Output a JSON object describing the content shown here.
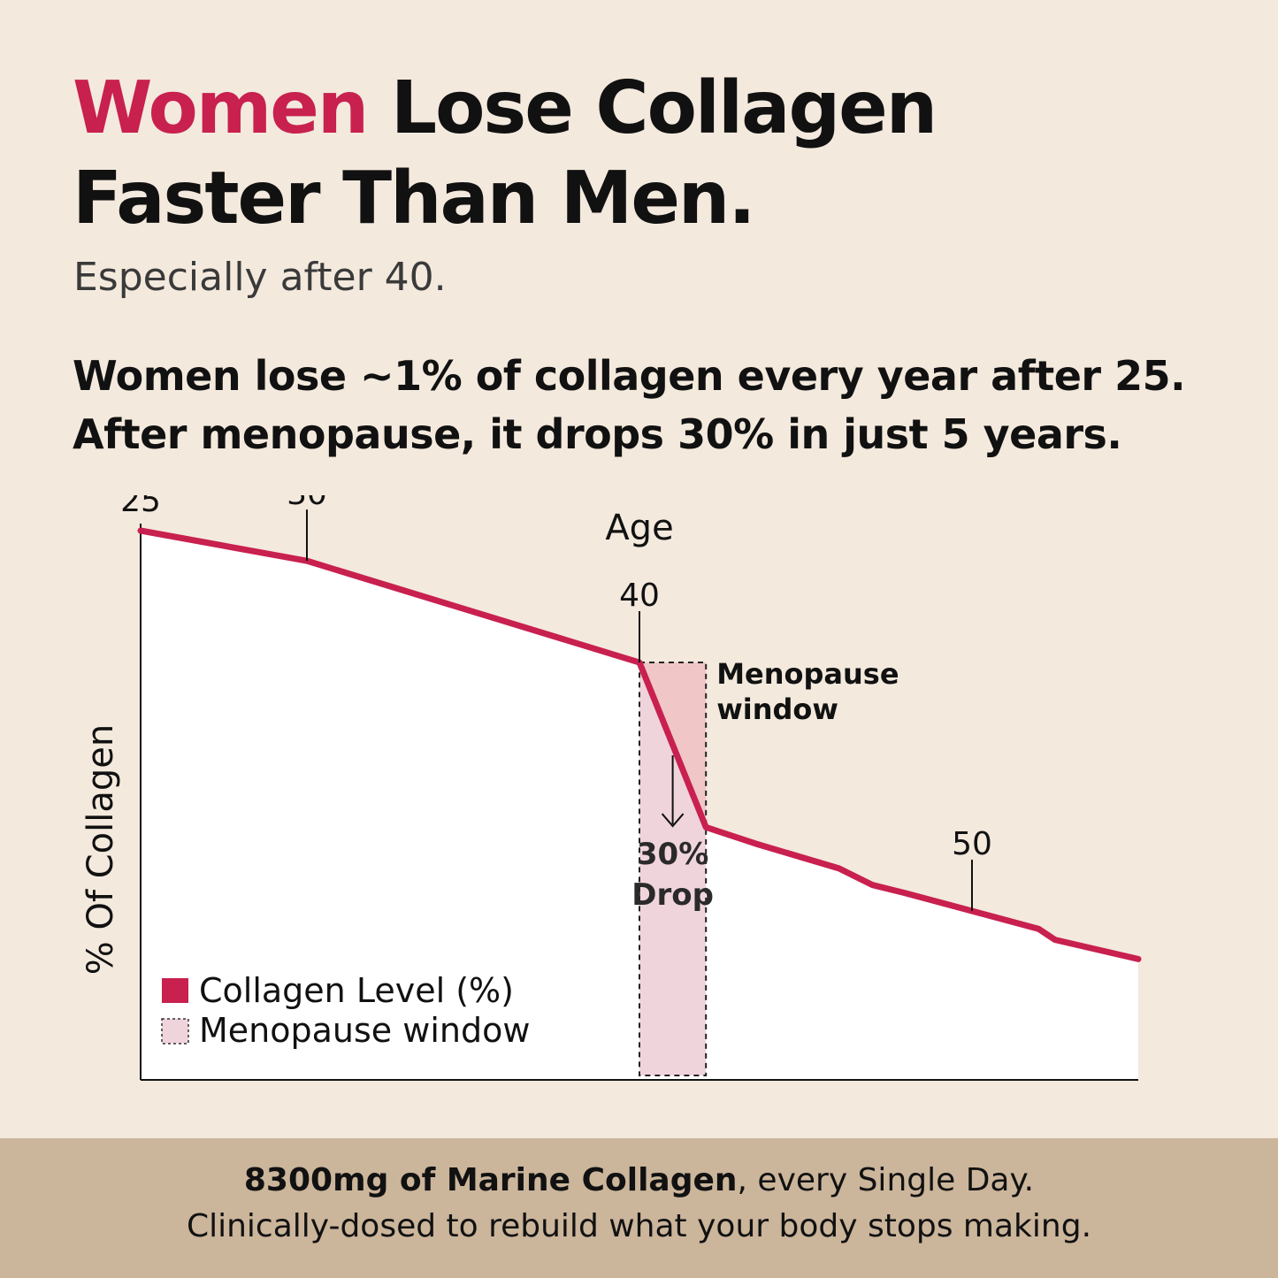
{
  "headline": {
    "accent_word": "Women",
    "line1_rest": " Lose Collagen",
    "line2": "Faster Than Men."
  },
  "subhead": "Especially after 40.",
  "stat_lines": [
    "Women lose ~1% of collagen every year after 25.",
    "After menopause, it drops 30% in just 5 years."
  ],
  "colors": {
    "accent": "#c8204f",
    "background": "#f3e9dd",
    "menopause_fill": "#f0d4dc",
    "menopause_fill_upper": "#f0c6c6",
    "footer_bg": "#cbb59b"
  },
  "chart_data": {
    "type": "line",
    "title": "",
    "xlabel": "Age",
    "ylabel": "% Of Collagen",
    "x": [
      25,
      30,
      40,
      42,
      42.5,
      43.5,
      46,
      47,
      48,
      52,
      52.5,
      55
    ],
    "series": [
      {
        "name": "Collagen Level (%)",
        "values": [
          100,
          94.5,
          76,
          46,
          45,
          43,
          38.5,
          35.5,
          34,
          27.5,
          25.5,
          22
        ]
      }
    ],
    "xlim": [
      25,
      55
    ],
    "ylim": [
      0,
      100
    ],
    "tick_labels": [
      "25",
      "30",
      "40",
      "50"
    ],
    "ticks_at": [
      25,
      30,
      40,
      50
    ],
    "shaded_region": {
      "name": "Menopause window",
      "x_range": [
        40,
        42
      ],
      "label_lines": [
        "Menopause",
        "window"
      ]
    },
    "annotation": {
      "lines": [
        "30%",
        "Drop"
      ]
    },
    "legend": {
      "placement": "bottom-left",
      "entries": [
        "Collagen Level (%)",
        "Menopause window"
      ]
    },
    "grid": false
  },
  "footer": {
    "line1_bold": "8300mg of Marine Collagen",
    "line1_rest": ", every Single Day.",
    "line2": "Clinically-dosed to rebuild what your body stops making."
  }
}
